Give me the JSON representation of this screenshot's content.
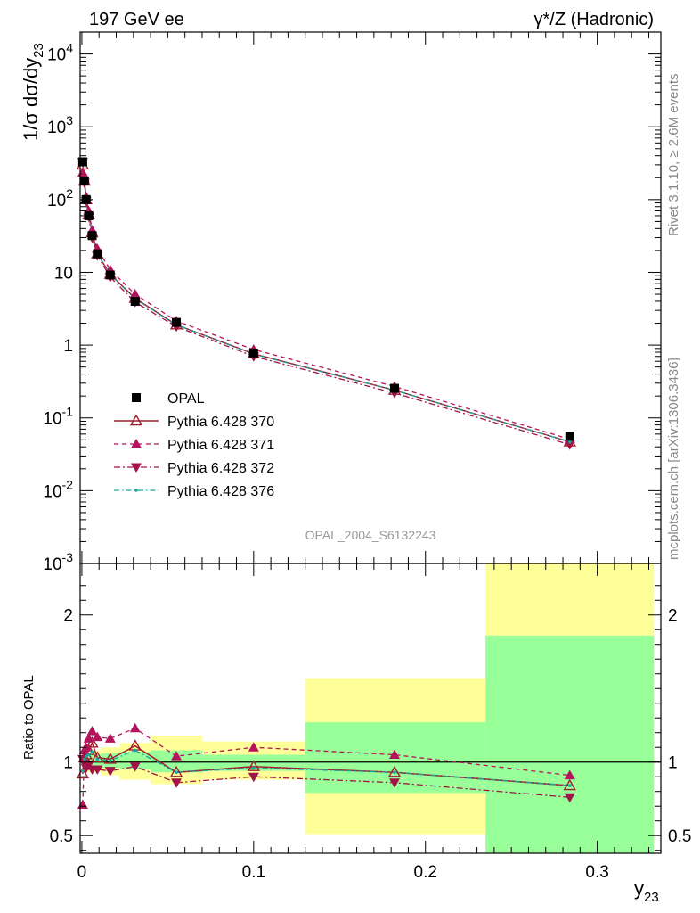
{
  "header": {
    "left_label": "197 GeV ee",
    "right_label": "γ*/Z (Hadronic)"
  },
  "side_labels": {
    "rivet": "Rivet 3.1.10, ≥ 2.6M events",
    "mcplots": "mcplots.cern.ch [arXiv:1306.3436]"
  },
  "analysis_id": "OPAL_2004_S6132243",
  "colors": {
    "opal": "#000000",
    "p370": "#9e1f2d",
    "p371": "#b5125c",
    "p372": "#a01448",
    "p376": "#1aa6a0",
    "band_inner": "#99ff99",
    "band_outer": "#ffff99"
  },
  "chart_data": [
    {
      "type": "scatter",
      "panel": "main",
      "ylabel": "1/σ dσ/dy23",
      "yscale": "log",
      "ylim": [
        0.001,
        20000
      ],
      "xlim": [
        -0.001,
        0.337
      ],
      "y_tick_labels": [
        "10^-3",
        "10^-2",
        "10^-1",
        "1",
        "10",
        "10^2",
        "10^3",
        "10^4"
      ],
      "legend": [
        "OPAL",
        "Pythia 6.428 370",
        "Pythia 6.428 371",
        "Pythia 6.428 372",
        "Pythia 6.428 376"
      ],
      "legend_position": "bottom-left",
      "x": [
        0.0005,
        0.0015,
        0.0025,
        0.004,
        0.006,
        0.009,
        0.0165,
        0.031,
        0.055,
        0.1,
        0.182,
        0.284
      ],
      "series": [
        {
          "name": "OPAL",
          "marker": "square",
          "values": [
            330,
            180,
            100,
            60,
            32,
            18,
            9.2,
            4.0,
            2.05,
            0.78,
            0.255,
            0.056
          ]
        },
        {
          "name": "Pythia 6.428 370",
          "marker": "open-triangle-up",
          "values": [
            300,
            180,
            100,
            62,
            35,
            18,
            9.4,
            4.4,
            1.9,
            0.76,
            0.24,
            0.047
          ]
        },
        {
          "name": "Pythia 6.428 371",
          "marker": "triangle-up",
          "values": [
            235,
            195,
            110,
            70,
            38,
            21,
            10.8,
            5.0,
            2.15,
            0.87,
            0.27,
            0.051
          ]
        },
        {
          "name": "Pythia 6.428 372",
          "marker": "triangle-down",
          "values": [
            330,
            170,
            96,
            58,
            30,
            17,
            8.6,
            3.9,
            1.8,
            0.7,
            0.22,
            0.043
          ]
        },
        {
          "name": "Pythia 6.428 376",
          "marker": "dot",
          "values": [
            310,
            178,
            100,
            61,
            34,
            18,
            9.3,
            4.3,
            1.9,
            0.75,
            0.24,
            0.047
          ]
        }
      ]
    },
    {
      "type": "scatter",
      "panel": "ratio",
      "ylabel": "Ratio to OPAL",
      "xlabel": "y23",
      "ylim": [
        0.38,
        2.35
      ],
      "xlim": [
        -0.001,
        0.337
      ],
      "y_tick_labels": [
        "0.5",
        "1",
        "2"
      ],
      "x_tick_labels": [
        "0",
        "0.1",
        "0.2",
        "0.3"
      ],
      "bands": [
        {
          "x0": 0.001,
          "x1": 0.002,
          "inner": [
            0.96,
            1.04
          ],
          "outer": [
            0.94,
            1.06
          ]
        },
        {
          "x0": 0.002,
          "x1": 0.003,
          "inner": [
            0.96,
            1.04
          ],
          "outer": [
            0.94,
            1.06
          ]
        },
        {
          "x0": 0.003,
          "x1": 0.005,
          "inner": [
            0.96,
            1.05
          ],
          "outer": [
            0.93,
            1.07
          ]
        },
        {
          "x0": 0.005,
          "x1": 0.007,
          "inner": [
            0.96,
            1.05
          ],
          "outer": [
            0.93,
            1.07
          ]
        },
        {
          "x0": 0.007,
          "x1": 0.011,
          "inner": [
            0.96,
            1.05
          ],
          "outer": [
            0.93,
            1.08
          ]
        },
        {
          "x0": 0.011,
          "x1": 0.022,
          "inner": [
            0.96,
            1.06
          ],
          "outer": [
            0.91,
            1.1
          ]
        },
        {
          "x0": 0.022,
          "x1": 0.04,
          "inner": [
            0.95,
            1.07
          ],
          "outer": [
            0.88,
            1.13
          ]
        },
        {
          "x0": 0.04,
          "x1": 0.07,
          "inner": [
            0.93,
            1.08
          ],
          "outer": [
            0.85,
            1.18
          ]
        },
        {
          "x0": 0.07,
          "x1": 0.13,
          "inner": [
            0.94,
            1.05
          ],
          "outer": [
            0.88,
            1.14
          ]
        },
        {
          "x0": 0.13,
          "x1": 0.235,
          "inner": [
            0.79,
            1.27
          ],
          "outer": [
            0.51,
            1.57
          ]
        },
        {
          "x0": 0.235,
          "x1": 0.333,
          "inner": [
            0.35,
            1.86
          ],
          "outer": [
            0.35,
            2.4
          ]
        }
      ],
      "x": [
        0.0005,
        0.0015,
        0.0025,
        0.004,
        0.006,
        0.009,
        0.0165,
        0.031,
        0.055,
        0.1,
        0.182,
        0.284
      ],
      "series": [
        {
          "name": "Pythia 6.428 370",
          "values": [
            0.92,
            1.03,
            1.05,
            1.08,
            1.13,
            1.03,
            1.02,
            1.11,
            0.93,
            0.97,
            0.93,
            0.84
          ]
        },
        {
          "name": "Pythia 6.428 371",
          "values": [
            0.71,
            1.08,
            1.1,
            1.16,
            1.21,
            1.17,
            1.16,
            1.23,
            1.04,
            1.1,
            1.05,
            0.91
          ]
        },
        {
          "name": "Pythia 6.428 372",
          "values": [
            1.02,
            0.99,
            0.96,
            0.98,
            0.95,
            0.95,
            0.94,
            0.97,
            0.86,
            0.9,
            0.86,
            0.76
          ]
        },
        {
          "name": "Pythia 6.428 376",
          "values": [
            0.94,
            1.02,
            1.04,
            1.05,
            1.07,
            1.02,
            1.01,
            1.08,
            0.93,
            0.96,
            0.93,
            0.84
          ]
        }
      ]
    }
  ]
}
